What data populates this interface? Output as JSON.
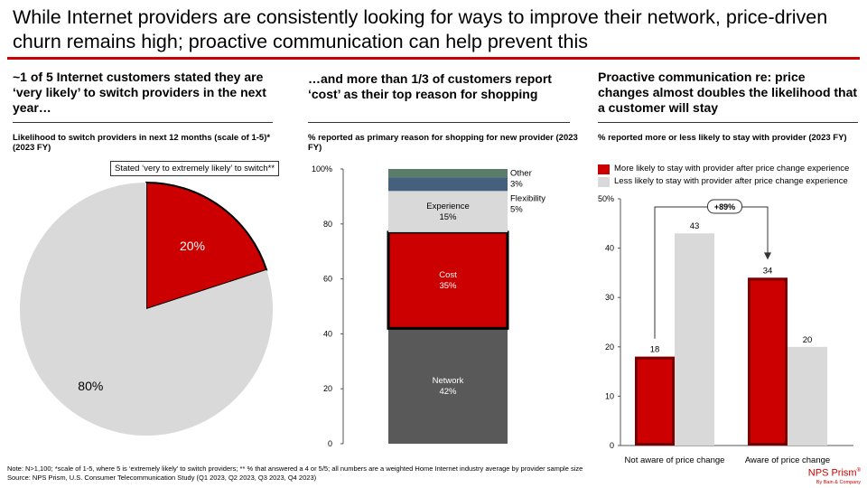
{
  "title": "While Internet providers are consistently looking for ways to improve their network, price-driven churn remains high; proactive communication can help prevent this",
  "panel1": {
    "heading": "~1 of 5 Internet customers stated they are ‘very likely’ to switch providers in the next year…",
    "subtitle": "Likelihood to switch providers in next 12 months (scale of 1-5)* (2023 FY)",
    "callout": "Stated ‘very to extremely likely’ to switch**"
  },
  "panel2": {
    "heading": "…and more than 1/3 of customers report ‘cost’ as their top reason for shopping",
    "subtitle": "% reported as primary reason for shopping for new provider (2023 FY)"
  },
  "panel3": {
    "heading": "Proactive communication re: price changes almost doubles the likelihood that a customer will stay",
    "subtitle": "% reported more or less likely to stay with provider (2023 FY)",
    "annotation": "+89%"
  },
  "colors": {
    "red": "#cc0000",
    "gray": "#d9d9d9",
    "dark": "#595959",
    "blue": "#44607d",
    "green": "#5a7d6a"
  },
  "chart_data": [
    {
      "type": "pie",
      "title": "Likelihood to switch providers in next 12 months (scale of 1-5)* (2023 FY)",
      "slices": [
        {
          "label": "20%",
          "value": 20,
          "color": "#cc0000"
        },
        {
          "label": "80%",
          "value": 80,
          "color": "#d9d9d9"
        }
      ]
    },
    {
      "type": "bar",
      "stacked": true,
      "title": "% reported as primary reason for shopping for new provider (2023 FY)",
      "ylim": [
        0,
        100
      ],
      "yticks": [
        "0",
        "20",
        "40",
        "60",
        "80",
        "100%"
      ],
      "segments": [
        {
          "name": "Network",
          "value": 42,
          "label": "42%",
          "color": "#595959",
          "text_color": "#ffffff"
        },
        {
          "name": "Cost",
          "value": 35,
          "label": "35%",
          "color": "#cc0000",
          "text_color": "#ffffff"
        },
        {
          "name": "Experience",
          "value": 15,
          "label": "15%",
          "color": "#d9d9d9",
          "text_color": "#000000"
        },
        {
          "name": "Flexibility",
          "value": 5,
          "label": "5%",
          "color": "#44607d",
          "text_color": "#000000"
        },
        {
          "name": "Other",
          "value": 3,
          "label": "3%",
          "color": "#5a7d6a",
          "text_color": "#000000"
        }
      ]
    },
    {
      "type": "bar",
      "title": "% reported more or less likely to stay with provider (2023 FY)",
      "categories": [
        "Not aware of price change",
        "Aware of price change"
      ],
      "ylim": [
        0,
        50
      ],
      "yticks": [
        "0",
        "10",
        "20",
        "30",
        "40",
        "50%"
      ],
      "series": [
        {
          "name": "More likely to stay with provider  after price change experience",
          "values": [
            18,
            34
          ],
          "labels": [
            "18",
            "34"
          ],
          "color": "#cc0000"
        },
        {
          "name": "Less likely to stay with provider  after price change experience",
          "values": [
            43,
            20
          ],
          "labels": [
            "43",
            "20"
          ],
          "color": "#d9d9d9"
        }
      ]
    }
  ],
  "footer": {
    "note": "Note: N>1,100; *scale of 1-5, where 5 is ‘extremely likely’ to switch providers; ** % that answered a 4 or 5/5; all numbers are a weighted Home Internet industry average by provider sample size",
    "source": "Source: NPS Prism, U.S. Consumer Telecommunication Study (Q1 2023, Q2 2023, Q3 2023, Q4 2023)",
    "logo": "NPS Prism",
    "logo_mark": "®",
    "logo_by": "By Bain & Company"
  }
}
